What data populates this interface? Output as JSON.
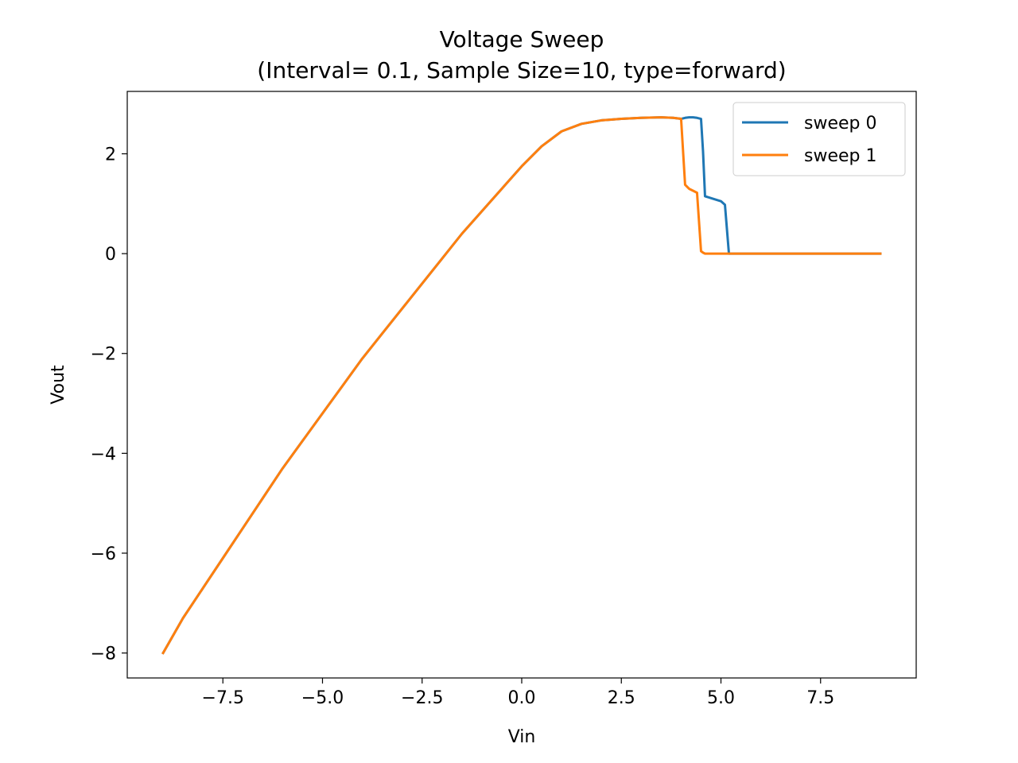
{
  "chart_data": {
    "type": "line",
    "title": "Voltage Sweep",
    "subtitle": "(Interval= 0.1, Sample Size=10, type=forward)",
    "xlabel": "Vin",
    "ylabel": "Vout",
    "xlim": [
      -9.9,
      9.9
    ],
    "ylim": [
      -8.5,
      3.25
    ],
    "xticks": [
      -7.5,
      -5.0,
      -2.5,
      0.0,
      2.5,
      5.0,
      7.5
    ],
    "xtick_labels": [
      "−7.5",
      "−5.0",
      "−2.5",
      "0.0",
      "2.5",
      "5.0",
      "7.5"
    ],
    "yticks": [
      2,
      0,
      -2,
      -4,
      -6,
      -8
    ],
    "ytick_labels": [
      "2",
      "0",
      "−2",
      "−4",
      "−6",
      "−8"
    ],
    "grid": false,
    "legend_position": "top-right",
    "series": [
      {
        "name": "sweep 0",
        "color": "#1f77b4",
        "x": [
          -9.0,
          -8.5,
          -8.0,
          -7.5,
          -7.0,
          -6.5,
          -6.0,
          -5.5,
          -5.0,
          -4.5,
          -4.0,
          -3.5,
          -3.0,
          -2.5,
          -2.0,
          -1.5,
          -1.0,
          -0.5,
          0.0,
          0.5,
          1.0,
          1.5,
          2.0,
          2.5,
          3.0,
          3.5,
          3.8,
          4.0,
          4.1,
          4.2,
          4.3,
          4.4,
          4.5,
          4.55,
          4.6,
          4.8,
          5.0,
          5.1,
          5.2,
          6.0,
          7.0,
          8.0,
          9.0
        ],
        "y": [
          -8.0,
          -7.3,
          -6.7,
          -6.1,
          -5.5,
          -4.9,
          -4.3,
          -3.75,
          -3.2,
          -2.65,
          -2.1,
          -1.6,
          -1.1,
          -0.6,
          -0.1,
          0.4,
          0.85,
          1.3,
          1.75,
          2.15,
          2.45,
          2.6,
          2.67,
          2.7,
          2.72,
          2.73,
          2.72,
          2.7,
          2.72,
          2.73,
          2.73,
          2.72,
          2.7,
          2.05,
          1.15,
          1.1,
          1.05,
          0.98,
          0.0,
          0.0,
          0.0,
          0.0,
          0.0
        ]
      },
      {
        "name": "sweep 1",
        "color": "#ff7f0e",
        "x": [
          -9.0,
          -8.5,
          -8.0,
          -7.5,
          -7.0,
          -6.5,
          -6.0,
          -5.5,
          -5.0,
          -4.5,
          -4.0,
          -3.5,
          -3.0,
          -2.5,
          -2.0,
          -1.5,
          -1.0,
          -0.5,
          0.0,
          0.5,
          1.0,
          1.5,
          2.0,
          2.5,
          3.0,
          3.5,
          3.8,
          4.0,
          4.1,
          4.2,
          4.4,
          4.5,
          4.55,
          4.6,
          4.8,
          5.0,
          5.1,
          5.2,
          6.0,
          7.0,
          8.0,
          9.0
        ],
        "y": [
          -8.0,
          -7.3,
          -6.7,
          -6.1,
          -5.5,
          -4.9,
          -4.3,
          -3.75,
          -3.2,
          -2.65,
          -2.1,
          -1.6,
          -1.1,
          -0.6,
          -0.1,
          0.4,
          0.85,
          1.3,
          1.75,
          2.15,
          2.45,
          2.6,
          2.67,
          2.7,
          2.72,
          2.73,
          2.72,
          2.7,
          1.38,
          1.3,
          1.22,
          0.05,
          0.02,
          0.0,
          0.0,
          0.0,
          0.0,
          0.0,
          0.0,
          0.0,
          0.0,
          0.0
        ]
      }
    ]
  }
}
